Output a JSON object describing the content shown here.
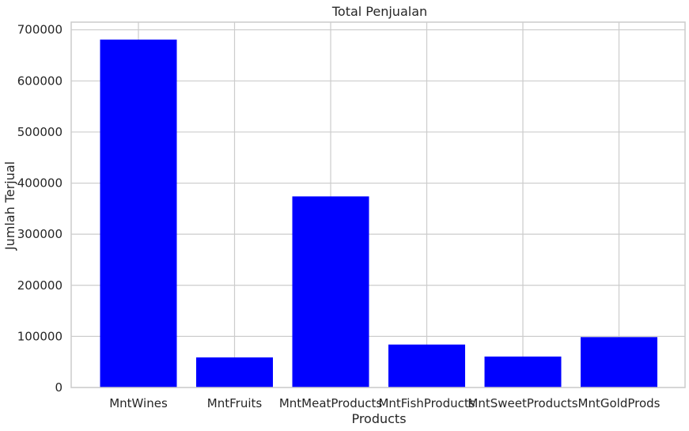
{
  "chart_data": {
    "type": "bar",
    "title": "Total Penjualan",
    "xlabel": "Products",
    "ylabel": "Jumlah Terjual",
    "categories": [
      "MntWines",
      "MntFruits",
      "MntMeatProducts",
      "MntFishProducts",
      "MntSweetProducts",
      "MntGoldProds"
    ],
    "values": [
      680816,
      58917,
      373968,
      84057,
      60621,
      98609
    ],
    "ylim": [
      0,
      715000
    ],
    "yticks": [
      0,
      100000,
      200000,
      300000,
      400000,
      500000,
      600000,
      700000
    ],
    "ytick_labels": [
      "0",
      "100000",
      "200000",
      "300000",
      "400000",
      "500000",
      "600000",
      "700000"
    ],
    "bar_color": "#0000ff",
    "grid": true,
    "grid_color": "#cccccc",
    "frame_color": "#cccccc"
  }
}
